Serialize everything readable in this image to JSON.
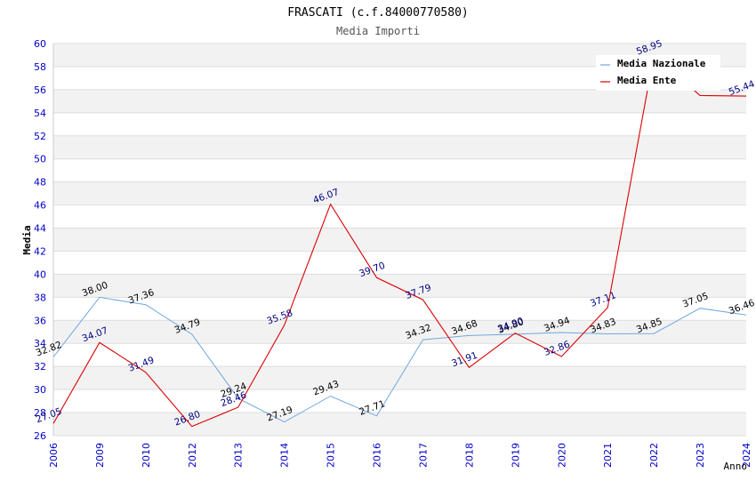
{
  "chart_data": {
    "type": "line",
    "title": "FRASCATI (c.f.84000770580)",
    "subtitle": "Media Importi",
    "xlabel": "Anno",
    "ylabel": "Media",
    "categories": [
      "2006",
      "2009",
      "2010",
      "2012",
      "2013",
      "2014",
      "2015",
      "2016",
      "2017",
      "2018",
      "2019",
      "2020",
      "2021",
      "2022",
      "2023",
      "2024"
    ],
    "ylim": [
      26,
      60
    ],
    "yticks": [
      26,
      28,
      30,
      32,
      34,
      36,
      38,
      40,
      42,
      44,
      46,
      48,
      50,
      52,
      54,
      56,
      58,
      60
    ],
    "grid": true,
    "legend_position": "top-right",
    "series": [
      {
        "name": "Media Nazionale",
        "color": "#6fa8e0",
        "values": [
          32.82,
          38.0,
          37.36,
          34.79,
          29.24,
          27.19,
          29.43,
          27.71,
          34.32,
          34.68,
          34.8,
          34.94,
          34.83,
          34.85,
          37.05,
          36.46
        ],
        "labels": [
          "32.82",
          "38.00",
          "37.36",
          "34.79",
          "29.24",
          "27.19",
          "29.43",
          "27.71",
          "34.32",
          "34.68",
          "34.80",
          "34.94",
          "34.83",
          "34.85",
          "37.05",
          "36.46"
        ]
      },
      {
        "name": "Media Ente",
        "color": "#dd0000",
        "values": [
          27.05,
          34.07,
          31.49,
          26.8,
          28.46,
          35.58,
          46.07,
          39.7,
          37.79,
          31.91,
          34.9,
          32.86,
          37.11,
          58.95,
          55.5,
          55.44
        ],
        "labels": [
          "27.05",
          "34.07",
          "31.49",
          "26.80",
          "28.46",
          "35.58",
          "46.07",
          "39.70",
          "37.79",
          "31.91",
          "34.90",
          "32.86",
          "37.11",
          "58.95",
          "",
          "55.44"
        ]
      }
    ]
  }
}
